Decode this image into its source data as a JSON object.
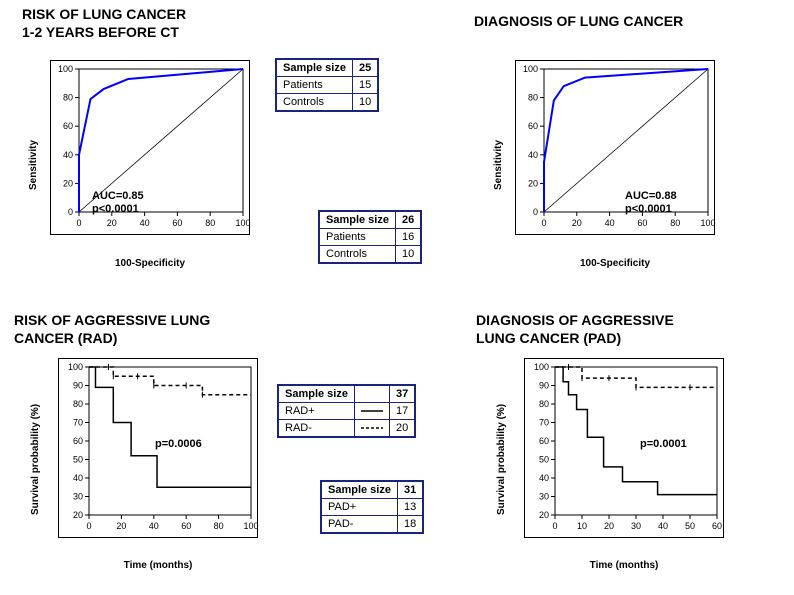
{
  "titles": {
    "topLeft": "RISK OF LUNG CANCER\n1-2 YEARS BEFORE CT",
    "topRight": "DIAGNOSIS OF LUNG CANCER",
    "bottomLeft": "RISK OF AGGRESSIVE LUNG\nCANCER (RAD)",
    "bottomRight": "DIAGNOSIS OF AGGRESSIVE\nLUNG CANCER (PAD)"
  },
  "roc": {
    "ylabel": "Sensitivity",
    "xlabel": "100-Specificity",
    "xlim": [
      0,
      100
    ],
    "ylim": [
      0,
      100
    ],
    "xticks": [
      0,
      20,
      40,
      60,
      80,
      100
    ],
    "yticks": [
      0,
      20,
      40,
      60,
      80,
      100
    ],
    "line_color": "#0000ff",
    "line_width": 2
  },
  "roc_left": {
    "points": [
      [
        0,
        0
      ],
      [
        0,
        40
      ],
      [
        7,
        79
      ],
      [
        15,
        86
      ],
      [
        30,
        93
      ],
      [
        100,
        100
      ]
    ],
    "auc_label": "AUC=0.85\np<0.0001"
  },
  "roc_right": {
    "points": [
      [
        0,
        0
      ],
      [
        0,
        35
      ],
      [
        6,
        78
      ],
      [
        12,
        88
      ],
      [
        25,
        94
      ],
      [
        100,
        100
      ]
    ],
    "auc_label": "AUC=0.88\np<0.0001"
  },
  "km": {
    "ylabel": "Survival probability (%)",
    "xlabel": "Time (months)",
    "ylim": [
      20,
      100
    ],
    "yticks": [
      20,
      30,
      40,
      50,
      60,
      70,
      80,
      90,
      100
    ],
    "line_color": "#000000",
    "line_width": 1.5
  },
  "km_left": {
    "xlim": [
      0,
      100
    ],
    "xticks": [
      0,
      20,
      40,
      60,
      80,
      100
    ],
    "series_rad_plus": [
      [
        0,
        100
      ],
      [
        4,
        89
      ],
      [
        10,
        89
      ],
      [
        15,
        70
      ],
      [
        22,
        70
      ],
      [
        26,
        52
      ],
      [
        35,
        52
      ],
      [
        42,
        35
      ],
      [
        60,
        35
      ],
      [
        100,
        35
      ]
    ],
    "series_rad_minus": [
      [
        0,
        100
      ],
      [
        12,
        100
      ],
      [
        15,
        95
      ],
      [
        30,
        95
      ],
      [
        40,
        90
      ],
      [
        60,
        90
      ],
      [
        70,
        85
      ],
      [
        100,
        85
      ]
    ],
    "p_label": "p=0.0006"
  },
  "km_right": {
    "xlim": [
      0,
      60
    ],
    "xticks": [
      0,
      10,
      20,
      30,
      40,
      50,
      60
    ],
    "series_pad_plus": [
      [
        0,
        100
      ],
      [
        3,
        92
      ],
      [
        5,
        85
      ],
      [
        8,
        77
      ],
      [
        12,
        62
      ],
      [
        18,
        46
      ],
      [
        25,
        38
      ],
      [
        38,
        31
      ],
      [
        60,
        31
      ]
    ],
    "series_pad_minus": [
      [
        0,
        100
      ],
      [
        5,
        100
      ],
      [
        10,
        94
      ],
      [
        20,
        94
      ],
      [
        30,
        89
      ],
      [
        50,
        89
      ],
      [
        60,
        89
      ]
    ],
    "p_label": "p=0.0001"
  },
  "tables": {
    "t1": {
      "header": [
        "Sample size",
        "25"
      ],
      "rows": [
        [
          "Patients",
          "15"
        ],
        [
          "Controls",
          "10"
        ]
      ]
    },
    "t2": {
      "header": [
        "Sample size",
        "26"
      ],
      "rows": [
        [
          "Patients",
          "16"
        ],
        [
          "Controls",
          "10"
        ]
      ]
    },
    "t3": {
      "header": [
        "Sample size",
        "37"
      ],
      "rows": [
        [
          "RAD+",
          "17"
        ],
        [
          "RAD-",
          "20"
        ]
      ],
      "dash": [
        "solid",
        "dashed"
      ]
    },
    "t4": {
      "header": [
        "Sample size",
        "31"
      ],
      "rows": [
        [
          "PAD+",
          "13"
        ],
        [
          "PAD-",
          "18"
        ]
      ]
    }
  },
  "colors": {
    "table_border": "#1a237e",
    "grid": "#000000",
    "bg": "#ffffff"
  },
  "fonts": {
    "title": 14,
    "axis": 11,
    "tick": 9,
    "annot": 11
  }
}
